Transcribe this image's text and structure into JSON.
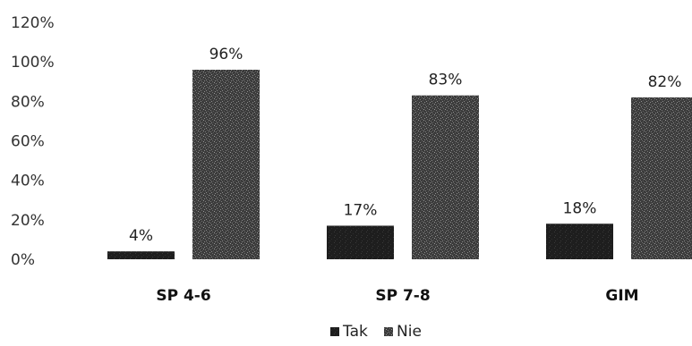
{
  "chart_data": {
    "type": "bar",
    "title": "",
    "xlabel": "",
    "ylabel": "",
    "categories": [
      "SP 4-6",
      "SP 7-8",
      "GIM"
    ],
    "series": [
      {
        "name": "Tak",
        "values": [
          4,
          17,
          18
        ],
        "labels": [
          "4%",
          "17%",
          "18%"
        ],
        "color": "#1e1e1e"
      },
      {
        "name": "Nie",
        "values": [
          96,
          83,
          82
        ],
        "labels": [
          "96%",
          "83%",
          "82%"
        ],
        "color": "#4a4a4a"
      }
    ],
    "ylim": [
      0,
      120
    ],
    "yticks": [
      0,
      20,
      40,
      60,
      80,
      100,
      120
    ],
    "ytick_labels": [
      "0%",
      "20%",
      "40%",
      "60%",
      "80%",
      "100%",
      "120%"
    ],
    "grid": false,
    "legend_position": "bottom",
    "colors": {
      "tak": "#1e1e1e",
      "nie": "#4a4a4a",
      "background": "#ffffff"
    }
  }
}
